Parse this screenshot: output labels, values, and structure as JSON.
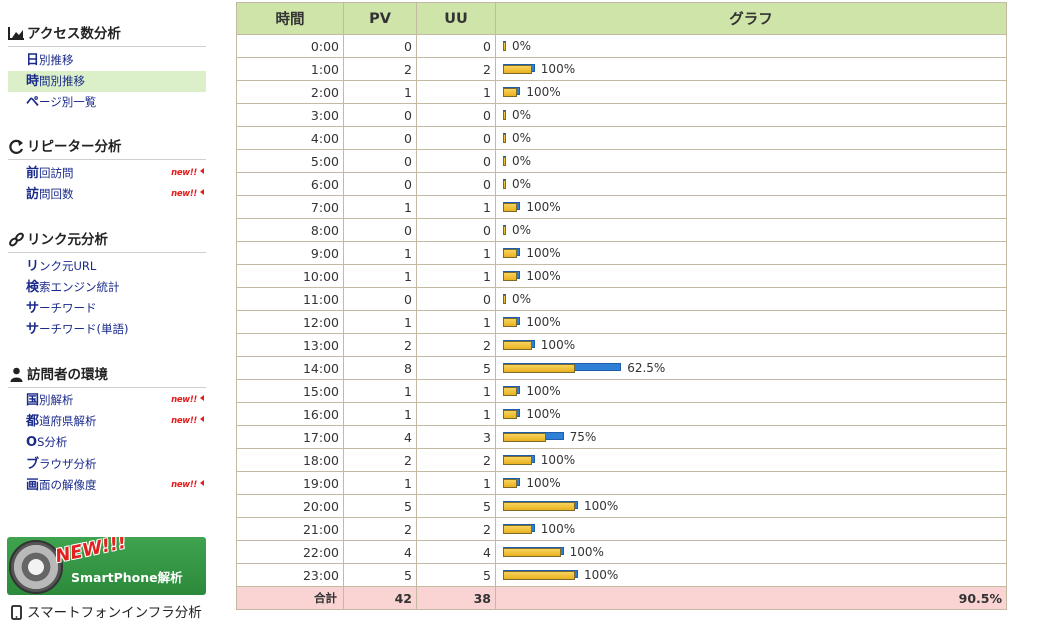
{
  "sidebar": {
    "sections": [
      {
        "title": "アクセス数分析",
        "icon": "chart-icon",
        "items": [
          {
            "first": "日",
            "rest": "別推移",
            "new": false,
            "active": false
          },
          {
            "first": "時",
            "rest": "間別推移",
            "new": false,
            "active": true
          },
          {
            "first": "ペ",
            "rest": "ージ別一覧",
            "new": false,
            "active": false
          }
        ]
      },
      {
        "title": "リピーター分析",
        "icon": "refresh-icon",
        "items": [
          {
            "first": "前",
            "rest": "回訪問",
            "new": true,
            "active": false
          },
          {
            "first": "訪",
            "rest": "問回数",
            "new": true,
            "active": false
          }
        ]
      },
      {
        "title": "リンク元分析",
        "icon": "link-icon",
        "items": [
          {
            "first": "リ",
            "rest": "ンク元URL",
            "new": false,
            "active": false
          },
          {
            "first": "検",
            "rest": "索エンジン統計",
            "new": false,
            "active": false
          },
          {
            "first": "サ",
            "rest": "ーチワード",
            "new": false,
            "active": false
          },
          {
            "first": "サ",
            "rest": "ーチワード(単語)",
            "new": false,
            "active": false
          }
        ]
      },
      {
        "title": "訪問者の環境",
        "icon": "person-icon",
        "items": [
          {
            "first": "国",
            "rest": "別解析",
            "new": true,
            "active": false
          },
          {
            "first": "都",
            "rest": "道府県解析",
            "new": true,
            "active": false
          },
          {
            "first": "O",
            "rest": "S分析",
            "new": false,
            "active": false
          },
          {
            "first": "ブ",
            "rest": "ラウザ分析",
            "new": false,
            "active": false
          },
          {
            "first": "画",
            "rest": "面の解像度",
            "new": true,
            "active": false
          }
        ]
      }
    ],
    "new_badge": "new!!",
    "banner": {
      "new_text": "NEW!!!",
      "label": "SmartPhone解析"
    },
    "bottom_section": {
      "title": "スマートフォンインフラ分析",
      "icon": "smartphone-icon"
    }
  },
  "table": {
    "headers": {
      "time": "時間",
      "pv": "PV",
      "uu": "UU",
      "graph": "グラフ"
    },
    "rows": [
      {
        "time": "0:00",
        "pv": 0,
        "uu": 0,
        "pct": "0%"
      },
      {
        "time": "1:00",
        "pv": 2,
        "uu": 2,
        "pct": "100%"
      },
      {
        "time": "2:00",
        "pv": 1,
        "uu": 1,
        "pct": "100%"
      },
      {
        "time": "3:00",
        "pv": 0,
        "uu": 0,
        "pct": "0%"
      },
      {
        "time": "4:00",
        "pv": 0,
        "uu": 0,
        "pct": "0%"
      },
      {
        "time": "5:00",
        "pv": 0,
        "uu": 0,
        "pct": "0%"
      },
      {
        "time": "6:00",
        "pv": 0,
        "uu": 0,
        "pct": "0%"
      },
      {
        "time": "7:00",
        "pv": 1,
        "uu": 1,
        "pct": "100%"
      },
      {
        "time": "8:00",
        "pv": 0,
        "uu": 0,
        "pct": "0%"
      },
      {
        "time": "9:00",
        "pv": 1,
        "uu": 1,
        "pct": "100%"
      },
      {
        "time": "10:00",
        "pv": 1,
        "uu": 1,
        "pct": "100%"
      },
      {
        "time": "11:00",
        "pv": 0,
        "uu": 0,
        "pct": "0%"
      },
      {
        "time": "12:00",
        "pv": 1,
        "uu": 1,
        "pct": "100%"
      },
      {
        "time": "13:00",
        "pv": 2,
        "uu": 2,
        "pct": "100%"
      },
      {
        "time": "14:00",
        "pv": 8,
        "uu": 5,
        "pct": "62.5%"
      },
      {
        "time": "15:00",
        "pv": 1,
        "uu": 1,
        "pct": "100%"
      },
      {
        "time": "16:00",
        "pv": 1,
        "uu": 1,
        "pct": "100%"
      },
      {
        "time": "17:00",
        "pv": 4,
        "uu": 3,
        "pct": "75%"
      },
      {
        "time": "18:00",
        "pv": 2,
        "uu": 2,
        "pct": "100%"
      },
      {
        "time": "19:00",
        "pv": 1,
        "uu": 1,
        "pct": "100%"
      },
      {
        "time": "20:00",
        "pv": 5,
        "uu": 5,
        "pct": "100%"
      },
      {
        "time": "21:00",
        "pv": 2,
        "uu": 2,
        "pct": "100%"
      },
      {
        "time": "22:00",
        "pv": 4,
        "uu": 4,
        "pct": "100%"
      },
      {
        "time": "23:00",
        "pv": 5,
        "uu": 5,
        "pct": "100%"
      }
    ],
    "total": {
      "label": "合計",
      "pv": 42,
      "uu": 38,
      "pct": "90.5%"
    }
  },
  "colors": {
    "header_bg": "#cfe4a8",
    "total_bg": "#fad3d3",
    "pv_bar": "#2f7fd6",
    "uu_bar": "#f0c030",
    "nav_text": "#1a2a8a",
    "active_bg": "#dbf0c8",
    "new_badge": "#e41c1c"
  }
}
